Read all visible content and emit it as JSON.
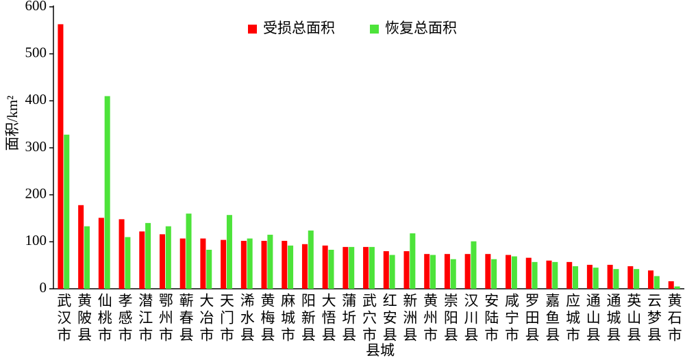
{
  "chart_data": {
    "type": "bar",
    "x_label": "县城",
    "y_label": "面积/km²",
    "categories": [
      "武汉市",
      "黄陂县",
      "仙桃市",
      "孝感市",
      "潜江市",
      "鄂州市",
      "蕲春县",
      "大冶市",
      "天门市",
      "浠水县",
      "黄梅县",
      "麻城市",
      "阳新县",
      "大悟县",
      "蒲圻县",
      "武穴市",
      "红安县",
      "新洲县",
      "黄州市",
      "崇阳县",
      "汉川县",
      "安陆市",
      "咸宁市",
      "罗田县",
      "嘉鱼县",
      "应城市",
      "通山县",
      "通城县",
      "英山县",
      "云梦县",
      "黄石市"
    ],
    "series": [
      {
        "name": "受损总面积",
        "color": "#ff0000",
        "values": [
          563,
          178,
          151,
          148,
          122,
          116,
          107,
          107,
          104,
          102,
          102,
          102,
          95,
          92,
          89,
          89,
          80,
          80,
          74,
          74,
          74,
          74,
          72,
          66,
          60,
          57,
          51,
          51,
          48,
          39,
          16
        ]
      },
      {
        "name": "恢复总面积",
        "color": "#4de33a",
        "values": [
          328,
          133,
          410,
          110,
          140,
          133,
          160,
          83,
          157,
          107,
          115,
          92,
          124,
          83,
          89,
          89,
          72,
          118,
          72,
          63,
          101,
          63,
          69,
          57,
          57,
          48,
          45,
          42,
          42,
          27,
          5
        ]
      }
    ],
    "ylim": [
      0,
      600
    ],
    "yticks": [
      0,
      100,
      200,
      300,
      400,
      500,
      600
    ],
    "grid": false,
    "legend": "top"
  }
}
